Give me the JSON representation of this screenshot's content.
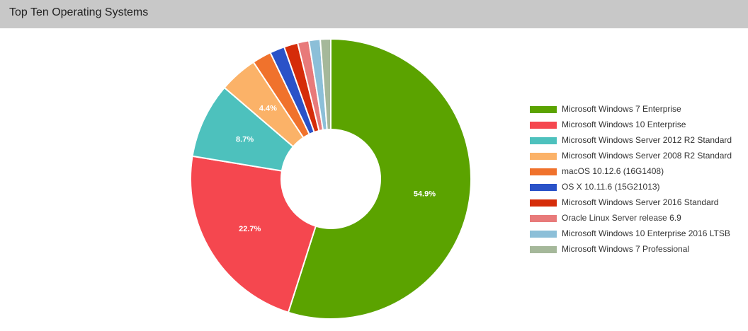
{
  "header": {
    "title": "Top Ten Operating Systems"
  },
  "chart_data": {
    "type": "pie",
    "title": "Top Ten Operating Systems",
    "donut": true,
    "legend_position": "right",
    "slices": [
      {
        "label": "Microsoft Windows 7 Enterprise",
        "value": 54.9,
        "color": "#5ba300",
        "data_label": "54.9%"
      },
      {
        "label": "Microsoft Windows 10 Enterprise",
        "value": 22.7,
        "color": "#f5474f",
        "data_label": "22.7%"
      },
      {
        "label": "Microsoft Windows Server 2012 R2 Standard",
        "value": 8.7,
        "color": "#4dc1bd",
        "data_label": "8.7%"
      },
      {
        "label": "Microsoft Windows Server 2008 R2 Standard",
        "value": 4.4,
        "color": "#fbb268",
        "data_label": "4.4%"
      },
      {
        "label": "macOS 10.12.6 (16G1408)",
        "value": 2.2,
        "color": "#f0722c",
        "data_label": ""
      },
      {
        "label": "OS X 10.11.6 (15G21013)",
        "value": 1.7,
        "color": "#2a52c8",
        "data_label": ""
      },
      {
        "label": "Microsoft Windows Server 2016 Standard",
        "value": 1.6,
        "color": "#d52c09",
        "data_label": ""
      },
      {
        "label": "Oracle Linux Server release 6.9",
        "value": 1.3,
        "color": "#e87a7a",
        "data_label": ""
      },
      {
        "label": "Microsoft Windows 10 Enterprise 2016 LTSB",
        "value": 1.3,
        "color": "#8cbfd8",
        "data_label": ""
      },
      {
        "label": "Microsoft Windows 7 Professional",
        "value": 1.2,
        "color": "#a5b89a",
        "data_label": ""
      }
    ]
  }
}
